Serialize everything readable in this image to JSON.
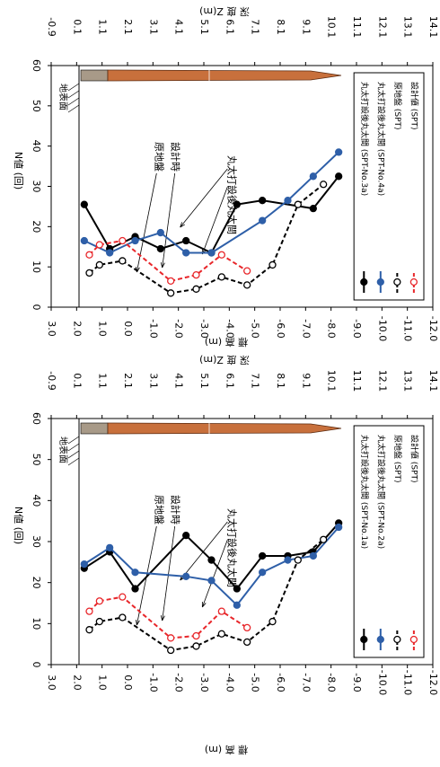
{
  "chart_data": [
    {
      "type": "line",
      "x_label": "標 高 (m)",
      "x2_label": "深 度 Z(m)",
      "y_label": "N値 (回)",
      "annotations": [
        "原地盤",
        "設計時",
        "丸太打設後丸太間",
        "地表面"
      ],
      "xlim": [
        3,
        -12
      ],
      "xticks": [
        {
          "value": 3,
          "label": "3.0"
        },
        {
          "value": 2,
          "label": "2.0"
        },
        {
          "value": 1,
          "label": "1.0"
        },
        {
          "value": 0,
          "label": "0.0"
        },
        {
          "value": -1,
          "label": "-1.0"
        },
        {
          "value": -2,
          "label": "-2.0"
        },
        {
          "value": -3,
          "label": "-3.0"
        },
        {
          "value": -4,
          "label": "-4.0"
        },
        {
          "value": -5,
          "label": "-5.0"
        },
        {
          "value": -6,
          "label": "-6.0"
        },
        {
          "value": -7,
          "label": "-7.0"
        },
        {
          "value": -8,
          "label": "-8.0"
        },
        {
          "value": -9,
          "label": "-9.0"
        },
        {
          "value": -10,
          "label": "-10.0"
        },
        {
          "value": -11,
          "label": "-11.0"
        },
        {
          "value": -12,
          "label": "-12.0"
        }
      ],
      "x2lim": [
        -0.9,
        14.1
      ],
      "x2ticks": [
        -0.9,
        0.1,
        1.1,
        2.1,
        3.1,
        4.1,
        5.1,
        6.1,
        7.1,
        8.1,
        9.1,
        10.1,
        11.1,
        12.1,
        13.1,
        14.1
      ],
      "ylim": [
        0,
        60
      ],
      "yticks": [
        0,
        10,
        20,
        30,
        40,
        50,
        60
      ],
      "series": [
        {
          "name": "丸太打設後丸太間 (SPT-No.3a)",
          "color": "#000000",
          "style": "solid",
          "marker": "filled",
          "x": [
            1.7,
            0.7,
            -0.3,
            -1.3,
            -2.3,
            -3.3,
            -4.3,
            -5.3,
            -7.3,
            -8.3
          ],
          "values": [
            25.5,
            14.5,
            17.5,
            14.5,
            16.5,
            13.5,
            25.5,
            26.5,
            24.5,
            32.5
          ]
        },
        {
          "name": "丸太打設後丸太間 (SPT-No.4a)",
          "color": "#2e5fa8",
          "style": "solid",
          "marker": "filled",
          "x": [
            1.7,
            0.7,
            -0.3,
            -1.3,
            -2.3,
            -3.3,
            -5.3,
            -6.3,
            -7.3,
            -8.3
          ],
          "values": [
            16.5,
            13.5,
            16.5,
            18.5,
            13.5,
            13.5,
            21.5,
            26.5,
            32.5,
            38.5
          ]
        },
        {
          "name": "原地盤 (SPT)",
          "color": "#000000",
          "style": "dashed",
          "marker": "open",
          "x": [
            1.5,
            1.1,
            0.2,
            -1.7,
            -2.7,
            -3.7,
            -4.7,
            -5.7,
            -6.7,
            -7.7
          ],
          "values": [
            8.5,
            10.5,
            11.5,
            3.5,
            4.5,
            7.5,
            5.5,
            10.5,
            25.5,
            30.5
          ]
        },
        {
          "name": "設計値 (SPT)",
          "color": "#e8262a",
          "style": "dashed",
          "marker": "open",
          "x": [
            1.5,
            1.1,
            0.2,
            -1.7,
            -2.7,
            -3.7,
            -4.7
          ],
          "values": [
            13,
            15.5,
            16.5,
            6.5,
            8,
            13,
            9
          ]
        }
      ]
    },
    {
      "type": "line",
      "x_label": "標 高 (m)",
      "x2_label": "深 度 Z(m)",
      "y_label": "N値 (回)",
      "annotations": [
        "原地盤",
        "設計時",
        "丸太打設後丸太間",
        "地表面"
      ],
      "xlim": [
        3,
        -12
      ],
      "xticks": [
        {
          "value": 3,
          "label": "3.0"
        },
        {
          "value": 2,
          "label": "2.0"
        },
        {
          "value": 1,
          "label": "1.0"
        },
        {
          "value": 0,
          "label": "0.0"
        },
        {
          "value": -1,
          "label": "-1.0"
        },
        {
          "value": -2,
          "label": "-2.0"
        },
        {
          "value": -3,
          "label": "-3.0"
        },
        {
          "value": -4,
          "label": "-4.0"
        },
        {
          "value": -5,
          "label": "-5.0"
        },
        {
          "value": -6,
          "label": "-6.0"
        },
        {
          "value": -7,
          "label": "-7.0"
        },
        {
          "value": -8,
          "label": "-8.0"
        },
        {
          "value": -9,
          "label": "-9.0"
        },
        {
          "value": -10,
          "label": "-10.0"
        },
        {
          "value": -11,
          "label": "-11.0"
        },
        {
          "value": -12,
          "label": "-12.0"
        }
      ],
      "x2lim": [
        -0.9,
        14.1
      ],
      "x2ticks": [
        -0.9,
        0.1,
        1.1,
        2.1,
        3.1,
        4.1,
        5.1,
        6.1,
        7.1,
        8.1,
        9.1,
        10.1,
        11.1,
        12.1,
        13.1,
        14.1
      ],
      "ylim": [
        0,
        60
      ],
      "yticks": [
        0,
        10,
        20,
        30,
        40,
        50,
        60
      ],
      "series": [
        {
          "name": "丸太打設後丸太間 (SPT-No.1a)",
          "color": "#000000",
          "style": "solid",
          "marker": "filled",
          "x": [
            1.7,
            0.7,
            -0.3,
            -2.3,
            -3.3,
            -4.3,
            -5.3,
            -6.3,
            -7.3,
            -8.3
          ],
          "values": [
            23.5,
            27.5,
            18.5,
            31.5,
            25.5,
            18.5,
            26.5,
            26.5,
            27.5,
            34.5
          ]
        },
        {
          "name": "丸太打設後丸太間 (SPT-No.2a)",
          "color": "#2e5fa8",
          "style": "solid",
          "marker": "filled",
          "x": [
            1.7,
            0.7,
            -0.3,
            -2.3,
            -3.3,
            -4.3,
            -5.3,
            -6.3,
            -7.3,
            -8.3
          ],
          "values": [
            24.5,
            28.5,
            22.5,
            21.5,
            20.5,
            14.5,
            22.5,
            25.5,
            26.5,
            33.5
          ]
        },
        {
          "name": "原地盤 (SPT)",
          "color": "#000000",
          "style": "dashed",
          "marker": "open",
          "x": [
            1.5,
            1.1,
            0.2,
            -1.7,
            -2.7,
            -3.7,
            -4.7,
            -5.7,
            -6.7,
            -7.7
          ],
          "values": [
            8.5,
            10.5,
            11.5,
            3.5,
            4.5,
            7.5,
            5.5,
            10.5,
            25.5,
            30.5
          ]
        },
        {
          "name": "設計値 (SPT)",
          "color": "#e8262a",
          "style": "dashed",
          "marker": "open",
          "x": [
            1.5,
            1.1,
            0.2,
            -1.7,
            -2.7,
            -3.7,
            -4.7
          ],
          "values": [
            13,
            15.5,
            16.5,
            6.5,
            7,
            13,
            9
          ]
        }
      ]
    }
  ]
}
